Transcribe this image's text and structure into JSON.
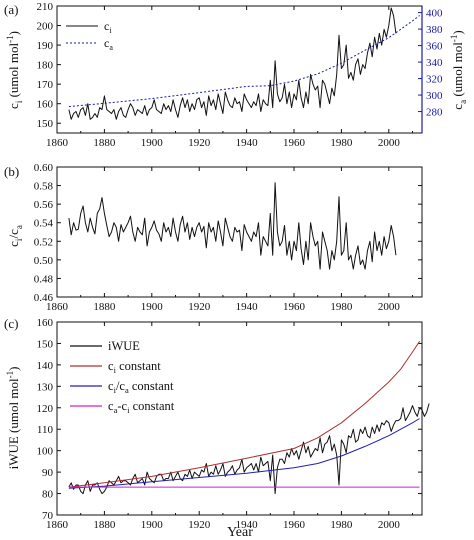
{
  "chart_data": [
    {
      "type": "line",
      "panel_label": "(a)",
      "xlabel": "",
      "ylabel": "c_i (umol mol^-1)",
      "ylabel_main": "c",
      "ylabel_sub": "i",
      "ylabel_unit": " (umol mol",
      "ylabel_sup": "-1",
      "ylabel_close": ")",
      "y2label_main": "c",
      "y2label_sub": "a",
      "y2label_unit": " (umol mol",
      "y2label_sup": "-1",
      "y2label_close": ")",
      "xlim": [
        1860,
        2014
      ],
      "ylim": [
        145,
        210
      ],
      "y2lim": [
        254,
        408
      ],
      "xticks": [
        "1860",
        "1880",
        "1900",
        "1920",
        "1940",
        "1960",
        "1980",
        "2000"
      ],
      "yticks": [
        "150",
        "160",
        "170",
        "180",
        "190",
        "200",
        "210"
      ],
      "y2ticks": [
        "280",
        "300",
        "320",
        "340",
        "360",
        "380",
        "400"
      ],
      "legend_position": "top-left",
      "legend": [
        {
          "main": "c",
          "sub": "i"
        },
        {
          "main": "c",
          "sub": "a"
        }
      ],
      "colors": {
        "ci": "#111111",
        "ca": "#1a1aa8",
        "right_axis": "#1a1aa8"
      },
      "series": [
        {
          "name": "c_i",
          "axis": "left",
          "x_start": 1865,
          "x_step": 1,
          "values": [
            157,
            152,
            155,
            156,
            153,
            157,
            158,
            154,
            160,
            152,
            153,
            155,
            153,
            158,
            157,
            164,
            157,
            156,
            155,
            157,
            152,
            156,
            158,
            154,
            153,
            157,
            160,
            158,
            154,
            157,
            156,
            155,
            159,
            154,
            157,
            158,
            162,
            157,
            156,
            155,
            160,
            157,
            159,
            156,
            162,
            157,
            153,
            159,
            163,
            158,
            162,
            156,
            160,
            157,
            162,
            163,
            158,
            161,
            154,
            164,
            159,
            162,
            157,
            165,
            160,
            155,
            166,
            162,
            159,
            158,
            163,
            160,
            161,
            156,
            165,
            162,
            160,
            158,
            161,
            159,
            165,
            156,
            162,
            160,
            159,
            172,
            158,
            182,
            165,
            161,
            163,
            170,
            160,
            166,
            158,
            165,
            162,
            172,
            163,
            158,
            166,
            160,
            175,
            170,
            167,
            169,
            158,
            172,
            170,
            165,
            160,
            168,
            164,
            175,
            195,
            178,
            180,
            190,
            173,
            176,
            172,
            180,
            183,
            175,
            180,
            178,
            186,
            191,
            184,
            194,
            188,
            196,
            190,
            198,
            194,
            200,
            209,
            205,
            196
          ]
        },
        {
          "name": "c_a",
          "axis": "right",
          "x": [
            1865,
            1880,
            1900,
            1920,
            1940,
            1950,
            1960,
            1970,
            1980,
            1990,
            2000,
            2005,
            2010,
            2013
          ],
          "values": [
            286,
            290,
            295.7,
            303,
            310.5,
            311.3,
            316.9,
            325.7,
            338.7,
            354.4,
            369.6,
            379.8,
            389.9,
            396.5
          ]
        }
      ]
    },
    {
      "type": "line",
      "panel_label": "(b)",
      "xlabel": "",
      "ylabel": "c_i/c_a",
      "ylabel_parts": {
        "c1": "c",
        "s1": "i",
        "slash": "/c",
        "s2": "a"
      },
      "xlim": [
        1860,
        2014
      ],
      "ylim": [
        0.46,
        0.6
      ],
      "xticks": [
        "1860",
        "1880",
        "1900",
        "1920",
        "1940",
        "1960",
        "1980",
        "2000"
      ],
      "yticks": [
        "0.46",
        "0.48",
        "0.50",
        "0.52",
        "0.54",
        "0.56",
        "0.58",
        "0.60"
      ],
      "series": [
        {
          "name": "c_i/c_a",
          "x_start": 1865,
          "x_step": 1,
          "values": [
            0.545,
            0.527,
            0.54,
            0.532,
            0.533,
            0.55,
            0.558,
            0.54,
            0.53,
            0.545,
            0.535,
            0.528,
            0.55,
            0.555,
            0.567,
            0.55,
            0.537,
            0.525,
            0.53,
            0.54,
            0.535,
            0.52,
            0.538,
            0.53,
            0.535,
            0.54,
            0.547,
            0.53,
            0.52,
            0.535,
            0.53,
            0.527,
            0.545,
            0.515,
            0.53,
            0.535,
            0.542,
            0.532,
            0.528,
            0.52,
            0.54,
            0.53,
            0.535,
            0.525,
            0.545,
            0.53,
            0.52,
            0.538,
            0.547,
            0.53,
            0.54,
            0.522,
            0.535,
            0.525,
            0.535,
            0.54,
            0.53,
            0.536,
            0.513,
            0.54,
            0.53,
            0.535,
            0.52,
            0.542,
            0.53,
            0.515,
            0.545,
            0.535,
            0.525,
            0.52,
            0.535,
            0.53,
            0.532,
            0.51,
            0.538,
            0.53,
            0.525,
            0.52,
            0.53,
            0.525,
            0.54,
            0.505,
            0.525,
            0.52,
            0.515,
            0.55,
            0.505,
            0.583,
            0.53,
            0.515,
            0.52,
            0.537,
            0.505,
            0.52,
            0.5,
            0.52,
            0.51,
            0.54,
            0.512,
            0.495,
            0.52,
            0.5,
            0.54,
            0.525,
            0.515,
            0.52,
            0.49,
            0.53,
            0.52,
            0.51,
            0.49,
            0.51,
            0.5,
            0.52,
            0.568,
            0.505,
            0.51,
            0.54,
            0.5,
            0.505,
            0.49,
            0.505,
            0.515,
            0.495,
            0.5,
            0.49,
            0.51,
            0.52,
            0.498,
            0.53,
            0.51,
            0.52,
            0.505,
            0.525,
            0.512,
            0.52,
            0.537,
            0.525,
            0.505
          ]
        }
      ]
    },
    {
      "type": "line",
      "panel_label": "(c)",
      "xlabel": "Year",
      "ylabel": "iWUE (umol mol^-1)",
      "ylabel_main": "iWUE (umol mol",
      "ylabel_sup": "-1",
      "ylabel_close": ")",
      "xlim": [
        1860,
        2014
      ],
      "ylim": [
        70,
        160
      ],
      "xticks": [
        "1860",
        "1880",
        "1900",
        "1920",
        "1940",
        "1960",
        "1980",
        "2000"
      ],
      "yticks": [
        "70",
        "80",
        "90",
        "100",
        "110",
        "120",
        "130",
        "140",
        "150",
        "160"
      ],
      "legend_position": "top-left",
      "legend": [
        {
          "text": "iWUE",
          "color": "#111111"
        },
        {
          "main": "c",
          "sub": "i",
          "rest": " constant",
          "color": "#b03030"
        },
        {
          "main": "c",
          "sub": "i",
          "mid": "/c",
          "sub2": "a",
          "rest": " constant",
          "color": "#2020b0"
        },
        {
          "main": "c",
          "sub": "a",
          "mid": "-c",
          "sub2": "i",
          "rest": " constant",
          "color": "#d020d0"
        }
      ],
      "series": [
        {
          "name": "iWUE",
          "x_start": 1865,
          "x_step": 1,
          "values": [
            83,
            85,
            82,
            84,
            84,
            81,
            80,
            84,
            86,
            81,
            84,
            84,
            85,
            82,
            80,
            81,
            83,
            86,
            85,
            84,
            86,
            88,
            85,
            86,
            86,
            85,
            84,
            87,
            89,
            85,
            86,
            87,
            84,
            90,
            87,
            86,
            85,
            88,
            89,
            89,
            86,
            87,
            87,
            90,
            86,
            88,
            90,
            87,
            86,
            89,
            88,
            91,
            87,
            90,
            89,
            88,
            91,
            90,
            94,
            88,
            90,
            89,
            93,
            89,
            91,
            94,
            88,
            90,
            91,
            93,
            89,
            91,
            92,
            96,
            90,
            92,
            93,
            94,
            91,
            94,
            90,
            97,
            93,
            94,
            95,
            86,
            98,
            80,
            92,
            96,
            96,
            94,
            99,
            97,
            101,
            98,
            100,
            96,
            100,
            104,
            99,
            102,
            97,
            99,
            101,
            100,
            106,
            99,
            103,
            104,
            107,
            100,
            103,
            98,
            84,
            105,
            103,
            99,
            107,
            106,
            110,
            104,
            105,
            110,
            108,
            111,
            107,
            106,
            111,
            108,
            112,
            109,
            113,
            112,
            114,
            113,
            109,
            112,
            114,
            114,
            115,
            120,
            114,
            116,
            118,
            121,
            118,
            116,
            120,
            119,
            116,
            118,
            122
          ]
        },
        {
          "name": "c_i constant",
          "x": [
            1865,
            1880,
            1900,
            1920,
            1940,
            1960,
            1970,
            1980,
            1990,
            2000,
            2005,
            2010,
            2013
          ],
          "values": [
            83,
            85,
            88,
            92,
            96.5,
            101,
            106,
            113,
            122,
            132,
            138,
            146,
            151
          ]
        },
        {
          "name": "c_i/c_a constant",
          "x": [
            1865,
            1880,
            1900,
            1920,
            1940,
            1960,
            1970,
            1980,
            1990,
            2000,
            2005,
            2010,
            2013
          ],
          "values": [
            82.5,
            83.5,
            85.5,
            87.5,
            89.5,
            92,
            94,
            97.5,
            102,
            107,
            110,
            113,
            115
          ]
        },
        {
          "name": "c_a-c_i constant",
          "x": [
            1865,
            2013
          ],
          "values": [
            83,
            83
          ]
        }
      ]
    }
  ]
}
